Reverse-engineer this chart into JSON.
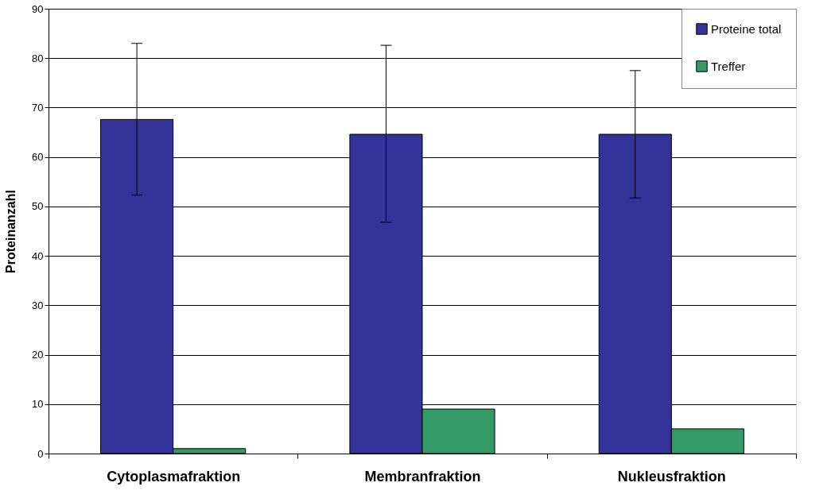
{
  "chart_data": {
    "type": "bar",
    "ylabel": "Proteinanzahl",
    "categories": [
      "Cytoplasmafraktion",
      "Membranfraktion",
      "Nukleusfraktion"
    ],
    "series": [
      {
        "name": "Proteine total",
        "color": "#333399",
        "values": [
          67.6,
          64.6,
          64.6
        ],
        "errors": [
          [
            52.3,
            83.0
          ],
          [
            46.8,
            82.6
          ],
          [
            51.7,
            77.5
          ]
        ]
      },
      {
        "name": "Treffer",
        "color": "#339966",
        "values": [
          1,
          9,
          5
        ]
      }
    ],
    "ylim": [
      0,
      90
    ],
    "yticks": [
      0,
      10,
      20,
      30,
      40,
      50,
      60,
      70,
      80,
      90
    ],
    "grid": "y",
    "legend": "top right"
  }
}
